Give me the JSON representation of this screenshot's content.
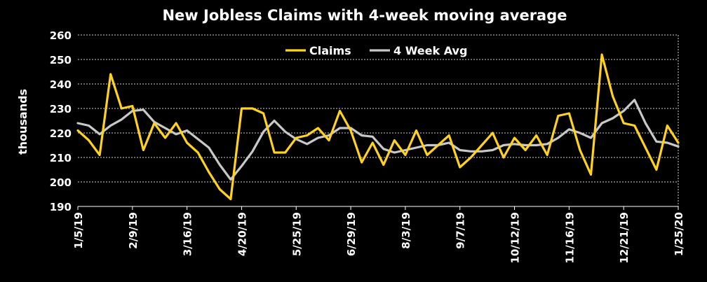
{
  "chart_data": {
    "type": "line",
    "title": "New Jobless Claims with 4-week moving average",
    "ylabel": "thousands",
    "xlabel": "",
    "ylim": [
      190,
      260
    ],
    "yticks": [
      190,
      200,
      210,
      220,
      230,
      240,
      250,
      260
    ],
    "grid": true,
    "legend_position": "top-center",
    "xtick_labels": [
      "1/5/19",
      "2/9/19",
      "3/16/19",
      "4/20/19",
      "5/25/19",
      "6/29/19",
      "8/3/19",
      "9/7/19",
      "10/12/19",
      "11/16/19",
      "12/21/19",
      "1/25/20"
    ],
    "x": [
      "1/5/19",
      "1/12/19",
      "1/19/19",
      "1/26/19",
      "2/2/19",
      "2/9/19",
      "2/16/19",
      "2/23/19",
      "3/2/19",
      "3/9/19",
      "3/16/19",
      "3/23/19",
      "3/30/19",
      "4/6/19",
      "4/13/19",
      "4/20/19",
      "4/27/19",
      "5/4/19",
      "5/11/19",
      "5/18/19",
      "5/25/19",
      "6/1/19",
      "6/8/19",
      "6/15/19",
      "6/22/19",
      "6/29/19",
      "7/6/19",
      "7/13/19",
      "7/20/19",
      "7/27/19",
      "8/3/19",
      "8/10/19",
      "8/17/19",
      "8/24/19",
      "8/31/19",
      "9/7/19",
      "9/14/19",
      "9/21/19",
      "9/28/19",
      "10/5/19",
      "10/12/19",
      "10/19/19",
      "10/26/19",
      "11/2/19",
      "11/9/19",
      "11/16/19",
      "11/23/19",
      "11/30/19",
      "12/7/19",
      "12/14/19",
      "12/21/19",
      "12/28/19",
      "1/4/20",
      "1/11/20",
      "1/18/20",
      "1/25/20"
    ],
    "series": [
      {
        "name": "Claims",
        "color": "#FFD21F",
        "values": [
          221,
          217,
          211,
          244,
          230,
          231,
          213,
          224,
          218,
          224,
          216,
          212,
          204,
          197,
          193,
          230,
          230,
          228,
          212,
          212,
          218,
          219,
          222,
          217,
          229,
          221,
          208,
          216,
          207,
          217,
          211,
          221,
          211,
          215,
          219,
          206,
          210,
          215,
          220,
          210,
          218,
          213,
          219,
          211,
          227,
          228,
          213,
          203,
          252,
          235,
          224,
          223,
          214,
          205,
          223,
          216
        ]
      },
      {
        "name": "4 Week Avg",
        "color": "#C8C8C8",
        "values": [
          224,
          223,
          219.5,
          223,
          225.5,
          229,
          229.5,
          224.5,
          222,
          219.5,
          221,
          217.5,
          214,
          207,
          201,
          206.5,
          212.5,
          220.5,
          225,
          220.5,
          217.5,
          215.5,
          218,
          219,
          222,
          222,
          219,
          218.5,
          213.5,
          212,
          213,
          214,
          215,
          215,
          216,
          213,
          212.5,
          212.5,
          213,
          215,
          215.5,
          215,
          215,
          215.5,
          218,
          221.5,
          220,
          218,
          224,
          226,
          229,
          233.5,
          224,
          216.5,
          216,
          214.5
        ]
      }
    ]
  }
}
